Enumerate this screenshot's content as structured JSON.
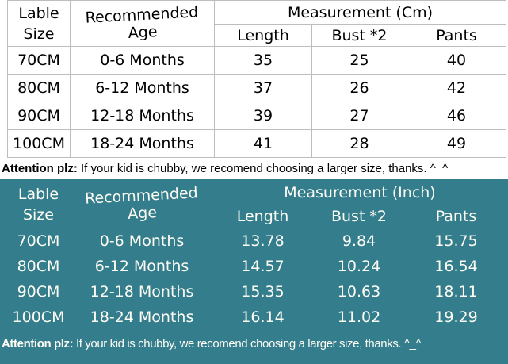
{
  "colors": {
    "teal_background": "#347d8c",
    "grid_line": "#bdbdbd",
    "text_dark": "#000000",
    "text_light": "#fdfcf5"
  },
  "attention": {
    "bold": "Attention plz:",
    "text": " If your kid is chubby, we recomend choosing a larger size, thanks. ^_^"
  },
  "cm": {
    "header": {
      "label_line1": "Lable",
      "label_line2": "Size",
      "age": "Recommended Age",
      "measurement": "Measurement (Cm)",
      "sub": [
        "Length",
        "Bust *2",
        "Pants"
      ]
    },
    "rows": [
      {
        "size": "70CM",
        "age": "0-6 Months",
        "length": "35",
        "bust": "25",
        "pants": "40"
      },
      {
        "size": "80CM",
        "age": "6-12 Months",
        "length": "37",
        "bust": "26",
        "pants": "42"
      },
      {
        "size": "90CM",
        "age": "12-18 Months",
        "length": "39",
        "bust": "27",
        "pants": "46"
      },
      {
        "size": "100CM",
        "age": "18-24 Months",
        "length": "41",
        "bust": "28",
        "pants": "49"
      }
    ]
  },
  "inch": {
    "header": {
      "label_line1": "Lable",
      "label_line2": "Size",
      "age": "Recommended Age",
      "measurement": "Measurement (Inch)",
      "sub": [
        "Length",
        "Bust *2",
        "Pants"
      ]
    },
    "rows": [
      {
        "size": "70CM",
        "age": "0-6 Months",
        "length": "13.78",
        "bust": "9.84",
        "pants": "15.75"
      },
      {
        "size": "80CM",
        "age": "6-12 Months",
        "length": "14.57",
        "bust": "10.24",
        "pants": "16.54"
      },
      {
        "size": "90CM",
        "age": "12-18 Months",
        "length": "15.35",
        "bust": "10.63",
        "pants": "18.11"
      },
      {
        "size": "100CM",
        "age": "18-24 Months",
        "length": "16.14",
        "bust": "11.02",
        "pants": "19.29"
      }
    ]
  },
  "chart_data": [
    {
      "type": "table",
      "title": "Measurement (Cm)",
      "columns": [
        "Lable Size",
        "Recommended Age",
        "Length",
        "Bust *2",
        "Pants"
      ],
      "rows": [
        [
          "70CM",
          "0-6 Months",
          35,
          25,
          40
        ],
        [
          "80CM",
          "6-12 Months",
          37,
          26,
          42
        ],
        [
          "90CM",
          "12-18 Months",
          39,
          27,
          46
        ],
        [
          "100CM",
          "18-24 Months",
          41,
          28,
          49
        ]
      ],
      "footnote": "Attention plz: If your kid is chubby, we recomend choosing a larger size, thanks. ^_^"
    },
    {
      "type": "table",
      "title": "Measurement (Inch)",
      "columns": [
        "Lable Size",
        "Recommended Age",
        "Length",
        "Bust *2",
        "Pants"
      ],
      "rows": [
        [
          "70CM",
          "0-6 Months",
          13.78,
          9.84,
          15.75
        ],
        [
          "80CM",
          "6-12 Months",
          14.57,
          10.24,
          16.54
        ],
        [
          "90CM",
          "12-18 Months",
          15.35,
          10.63,
          18.11
        ],
        [
          "100CM",
          "18-24 Months",
          16.14,
          11.02,
          19.29
        ]
      ],
      "footnote": "Attention plz: If your kid is chubby, we recomend choosing a larger size, thanks. ^_^"
    }
  ]
}
